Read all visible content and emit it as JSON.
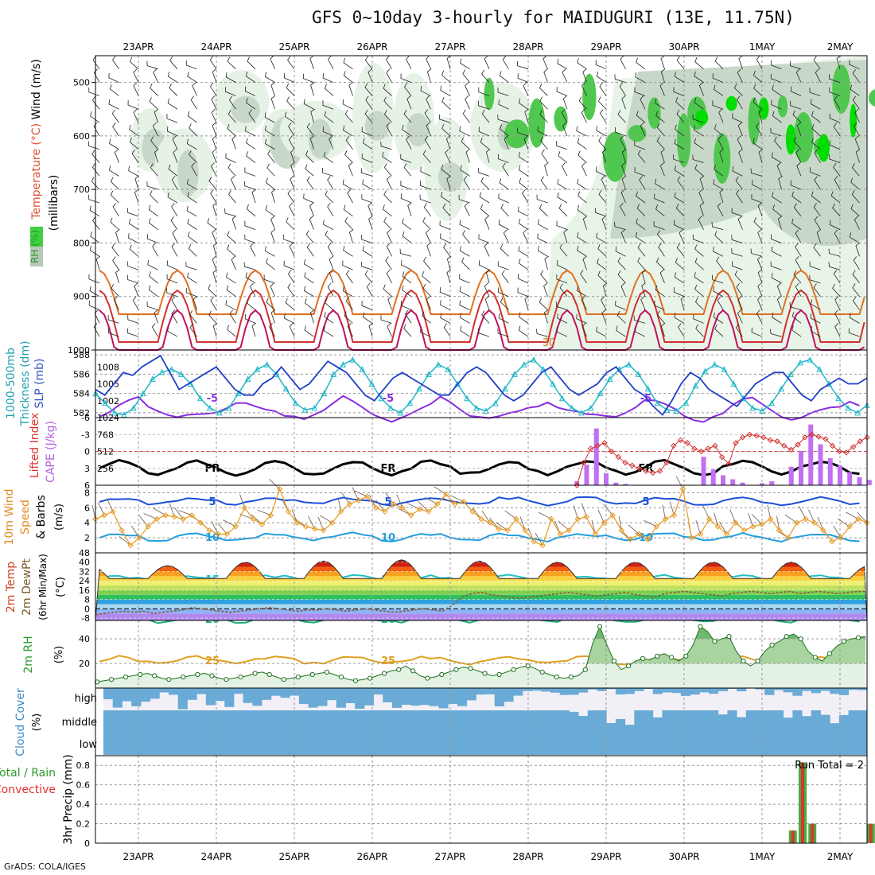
{
  "title": "GFS 0~10day 3-hourly for MAIDUGURI (13E, 11.75N)",
  "credit": "GrADS: COLA/IGES",
  "run_total": "Run Total = 2",
  "chart_data": {
    "type": "meteogram",
    "dates": [
      "23APR",
      "24APR",
      "25APR",
      "26APR",
      "27APR",
      "28APR",
      "29APR",
      "30APR",
      "1MAY",
      "2MAY"
    ],
    "panels": [
      {
        "name": "upper-air",
        "labels": [
          {
            "text": "Wind (m/s)",
            "color": "#000000"
          },
          {
            "text": "Temperature (°C)",
            "color": "#e05030"
          },
          {
            "text": "(millibars)",
            "color": "#000000"
          },
          {
            "text": "RH (%)",
            "color": "#2a9a2a"
          }
        ],
        "yticks": [
          500,
          600,
          700,
          800,
          900,
          1000
        ],
        "ylim": [
          1000,
          450
        ],
        "isotherms": [
          {
            "value": -5,
            "label": "-5",
            "color": "#8a2be2",
            "base": 500
          },
          {
            "value": 0,
            "label": "FR",
            "color": "#000000",
            "base": 588
          },
          {
            "value": 5,
            "label": "5",
            "color": "#1a4fd8",
            "base": 630
          },
          {
            "value": 10,
            "label": "10",
            "color": "#1e9ee0",
            "base": 675
          },
          {
            "value": 15,
            "label": "15",
            "color": "#20c0c0",
            "base": 728
          },
          {
            "value": 20,
            "label": "20",
            "color": "#20b080",
            "base": 778
          },
          {
            "value": 25,
            "label": "25",
            "color": "#e0a020",
            "base": 830
          }
        ],
        "warm_labels": [
          "30"
        ]
      },
      {
        "name": "thickness-slp",
        "labels": [
          {
            "text": "1000-500mb",
            "color": "#20a0b0"
          },
          {
            "text": "Thickness (dm)",
            "color": "#20a0b0"
          },
          {
            "text": "SLP (mb)",
            "color": "#3050c0"
          }
        ],
        "yticks_left": [
          582,
          584,
          586,
          588
        ],
        "yticks_right": [
          1002,
          1005,
          1008
        ],
        "ylim_left": [
          581.5,
          588.5
        ],
        "ylim_right": [
          999,
          1011
        ],
        "thickness": [
          584,
          583,
          582,
          581.8,
          582.5,
          584,
          585.5,
          586.2,
          586.5,
          586,
          585,
          583.5,
          582.5,
          582,
          582.5,
          584,
          585.5,
          586.5,
          587,
          586,
          584.5,
          583,
          582.3,
          582.5,
          584,
          586,
          587,
          587.5,
          586.5,
          585,
          583.5,
          582.5,
          582,
          583,
          584.5,
          586,
          587,
          586.5,
          585,
          583.5,
          582.5,
          582.2,
          583,
          584.5,
          586,
          587,
          587.5,
          586.5,
          585,
          583.5,
          582.5,
          582,
          582.5,
          584,
          585.5,
          586.5,
          587,
          586,
          584.5,
          583,
          582.3,
          582.2,
          583,
          584.8,
          586.3,
          587,
          586.5,
          585,
          583.5,
          582.5,
          582.2,
          583,
          584.5,
          586,
          587.2,
          587.5,
          586.5,
          585,
          583.5,
          582.5,
          582,
          582.8
        ],
        "slp": [
          1004,
          1003,
          1005,
          1007,
          1006.5,
          1008,
          1009,
          1010,
          1007,
          1004,
          1005,
          1006,
          1007,
          1008,
          1006,
          1004,
          1003,
          1003,
          1005,
          1006,
          1008,
          1006,
          1004,
          1005,
          1007,
          1009,
          1008,
          1007,
          1005,
          1003,
          1002,
          1004,
          1006,
          1007,
          1006,
          1005,
          1004,
          1003,
          1003,
          1005,
          1007,
          1008,
          1007,
          1005,
          1003,
          1002,
          1003,
          1005,
          1007,
          1008,
          1006,
          1004,
          1003,
          1004,
          1005,
          1007,
          1008,
          1006,
          1004,
          1003,
          1001,
          999.5,
          1002,
          1005,
          1007,
          1006,
          1004,
          1003,
          1002,
          1001,
          1003,
          1005,
          1006,
          1007,
          1007,
          1005,
          1003,
          1002,
          1004,
          1005,
          1006,
          1005,
          1005,
          1006
        ]
      },
      {
        "name": "cape-li",
        "labels": [
          {
            "text": "Lifted Index",
            "color": "#e03030"
          },
          {
            "text": "CAPE (J/kg)",
            "color": "#b060e0"
          }
        ],
        "yticks_left": [
          "-6",
          "-3",
          "0",
          "3",
          "6"
        ],
        "yticks_right": [
          256,
          512,
          768,
          1024
        ],
        "cape_start_index": 45,
        "cape": [
          60,
          310,
          860,
          180,
          40,
          20,
          0,
          0,
          0,
          0,
          0,
          0,
          0,
          430,
          240,
          150,
          90,
          40,
          0,
          30,
          60,
          0,
          280,
          520,
          920,
          620,
          410,
          300,
          200,
          120,
          80,
          160,
          260,
          760,
          640,
          480,
          320,
          0,
          30,
          110,
          150
        ],
        "lifted_index": [
          6,
          2,
          -0.5,
          -1,
          -1.5,
          0,
          1,
          2,
          2.5,
          3,
          3.5,
          3.8,
          3.5,
          2,
          -1,
          -2,
          -1.5,
          -0.5,
          0,
          -0.5,
          -1,
          1,
          2.2,
          -1.5,
          -2.5,
          -3,
          -2.8,
          -2.5,
          -2,
          -1.8,
          -1,
          -0.3,
          -1.2,
          -2.5,
          -3,
          -2.6,
          -2.2,
          -1,
          0,
          0.2,
          -0.8,
          -1.8,
          -2.5
        ]
      },
      {
        "name": "wind10m",
        "labels": [
          {
            "text": "10m Wind",
            "color": "#e08a20"
          },
          {
            "text": "Speed",
            "color": "#e08a20"
          },
          {
            "text": "& Barbs",
            "color": "#000000"
          },
          {
            "text": "(m/s)",
            "color": "#000000"
          }
        ],
        "yticks": [
          2,
          4,
          6,
          8
        ],
        "ylim": [
          0,
          9
        ],
        "speed": [
          4.5,
          5,
          5.5,
          3,
          1,
          2,
          3.5,
          4.5,
          5,
          4.8,
          4.5,
          5,
          4,
          3,
          2.5,
          2.5,
          3.5,
          6,
          4.5,
          3.8,
          5,
          8.5,
          5.5,
          4,
          3.5,
          3.2,
          3,
          4,
          5.5,
          6.5,
          7,
          7.5,
          6,
          5.5,
          6.5,
          6,
          5,
          5.8,
          5.5,
          6.5,
          7.8,
          6.5,
          6.8,
          5.5,
          4.5,
          4,
          3.2,
          3,
          4.5,
          3,
          1.5,
          1,
          4.5,
          2.5,
          3,
          4.5,
          4.8,
          2.5,
          4,
          5,
          3,
          1.8,
          2.5,
          1.8,
          3.5,
          4.5,
          5,
          8.5,
          2,
          2.5,
          4.5,
          3.5,
          2.5,
          4,
          3,
          3.5,
          3.8,
          4.5,
          3,
          2,
          4,
          4.5,
          4,
          3,
          1.5,
          2,
          3.5,
          4.5,
          4
        ]
      },
      {
        "name": "temp2m",
        "labels": [
          {
            "text": "2m Temp",
            "color": "#d04020"
          },
          {
            "text": "2m DewPt",
            "color": "#7a5a2a"
          },
          {
            "text": "(6hr Min/Max)",
            "color": "#000000"
          },
          {
            "text": "(°C)",
            "color": "#000000"
          }
        ],
        "yticks": [
          -8,
          0,
          8,
          16,
          24,
          32,
          40,
          48
        ],
        "ylim": [
          -10,
          48
        ],
        "temp_max_per_day": [
          37,
          40,
          41,
          42,
          41,
          40,
          40,
          40,
          40,
          37
        ],
        "temp_min": 26,
        "dewpoint": [
          -5,
          -4,
          -3,
          -2,
          -3,
          -2,
          -4,
          -3,
          -2,
          -1,
          1,
          0,
          -1,
          -2,
          -3,
          -2,
          -1,
          0,
          1,
          0,
          -1,
          -2,
          -1,
          -1,
          0,
          -1,
          -2,
          -1,
          0,
          -1,
          -2,
          -3,
          -2,
          -1,
          0,
          -1,
          -2,
          3,
          10,
          13,
          14,
          12,
          11,
          10,
          9,
          10,
          11,
          12,
          13,
          14,
          13,
          12,
          11,
          12,
          13,
          14,
          12,
          11,
          10,
          13,
          14,
          15,
          14,
          13,
          12,
          11,
          13,
          14,
          15,
          14,
          13,
          14,
          15,
          13,
          14,
          15,
          14,
          13,
          14,
          15,
          15
        ],
        "bands": [
          {
            "from": -10,
            "to": -4,
            "color": "#b088ee"
          },
          {
            "from": -4,
            "to": 0,
            "color": "#8ab4f8"
          },
          {
            "from": 0,
            "to": 4,
            "color": "#a8d8f0"
          },
          {
            "from": 4,
            "to": 8,
            "color": "#30a0e0"
          },
          {
            "from": 8,
            "to": 12,
            "color": "#30c060"
          },
          {
            "from": 12,
            "to": 16,
            "color": "#80d050"
          },
          {
            "from": 16,
            "to": 20,
            "color": "#c0e060"
          },
          {
            "from": 20,
            "to": 24,
            "color": "#f0f070"
          },
          {
            "from": 24,
            "to": 28,
            "color": "#f8d040"
          },
          {
            "from": 28,
            "to": 32,
            "color": "#f8a020"
          },
          {
            "from": 32,
            "to": 36,
            "color": "#f06010"
          },
          {
            "from": 36,
            "to": 40,
            "color": "#d02010"
          },
          {
            "from": 40,
            "to": 48,
            "color": "#901010"
          }
        ]
      },
      {
        "name": "rh2m",
        "labels": [
          {
            "text": "2m RH",
            "color": "#2a9a2a"
          },
          {
            "text": "(%)",
            "color": "#000000"
          }
        ],
        "yticks": [
          20,
          40
        ],
        "ylim": [
          0,
          55
        ],
        "rh": [
          5,
          6,
          7,
          8,
          9,
          10,
          11,
          12,
          10,
          8,
          7,
          8,
          9,
          10,
          11,
          12,
          10,
          8,
          7,
          8,
          9,
          10,
          12,
          13,
          11,
          9,
          7,
          8,
          9,
          10,
          11,
          12,
          13,
          11,
          9,
          7,
          6,
          7,
          8,
          10,
          12,
          14,
          15,
          18,
          14,
          10,
          8,
          9,
          11,
          13,
          15,
          17,
          16,
          14,
          12,
          10,
          11,
          13,
          15,
          17,
          18,
          16,
          13,
          11,
          9,
          8,
          9,
          10,
          15,
          36,
          50,
          35,
          22,
          15,
          18,
          22,
          24,
          23,
          26,
          28,
          25,
          22,
          26,
          35,
          50,
          46,
          38,
          40,
          42,
          30,
          22,
          18,
          22,
          30,
          35,
          38,
          42,
          44,
          40,
          30,
          25,
          22,
          28,
          34,
          38,
          40,
          41,
          42
        ]
      },
      {
        "name": "cloud",
        "labels": [
          {
            "text": "Cloud Cover",
            "color": "#3a8ac8"
          },
          {
            "text": "(%)",
            "color": "#000000"
          }
        ],
        "yticks": [
          "high",
          "middle",
          "low"
        ],
        "color": "#6aaad6"
      },
      {
        "name": "precip",
        "labels": [
          {
            "text": "Total / Rain",
            "color": "#2a9a2a"
          },
          {
            "text": "Convective",
            "color": "#e03030"
          },
          {
            "text": "3hr Precip (mm)",
            "color": "#000000"
          }
        ],
        "yticks": [
          "0",
          "0.2",
          "0.4",
          "0.6",
          "0.8"
        ],
        "ylim": [
          0,
          0.9
        ],
        "bars": [
          {
            "index": 67,
            "value": 0.13
          },
          {
            "index": 68,
            "value": 0.83
          },
          {
            "index": 69,
            "value": 0.2
          },
          {
            "index": 75,
            "value": 0.2
          },
          {
            "index": 76,
            "value": 0.64
          },
          {
            "index": 78,
            "value": 0.07
          }
        ]
      }
    ]
  }
}
